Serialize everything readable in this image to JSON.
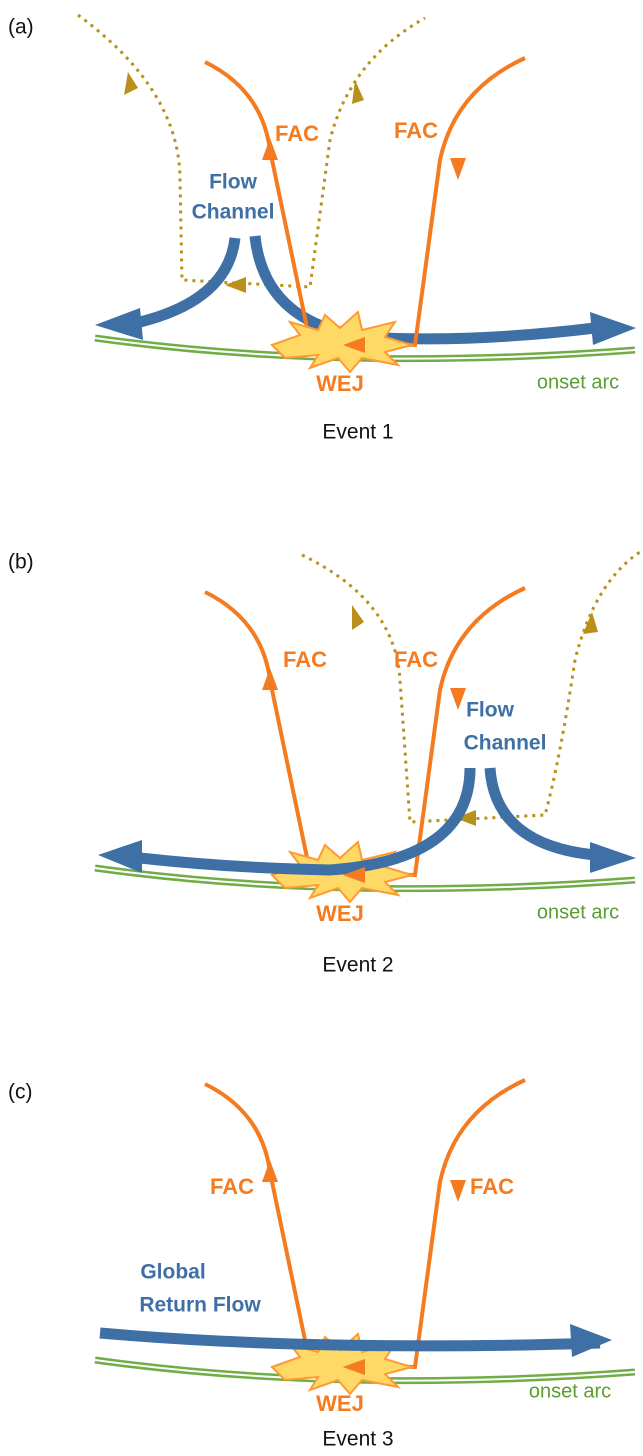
{
  "panels": [
    {
      "label": "(a)",
      "fac_labels": [
        "FAC",
        "FAC"
      ],
      "flow_label": [
        "Flow",
        "Channel"
      ],
      "wej_label": "WEJ",
      "arc_label": "onset arc",
      "caption": "Event 1"
    },
    {
      "label": "(b)",
      "fac_labels": [
        "FAC",
        "FAC"
      ],
      "flow_label": [
        "Flow",
        "Channel"
      ],
      "wej_label": "WEJ",
      "arc_label": "onset arc",
      "caption": "Event 2"
    },
    {
      "label": "(c)",
      "fac_labels": [
        "FAC",
        "FAC"
      ],
      "flow_label": [
        "Global",
        "Return Flow"
      ],
      "wej_label": "WEJ",
      "arc_label": "onset arc",
      "caption": "Event 3"
    }
  ]
}
